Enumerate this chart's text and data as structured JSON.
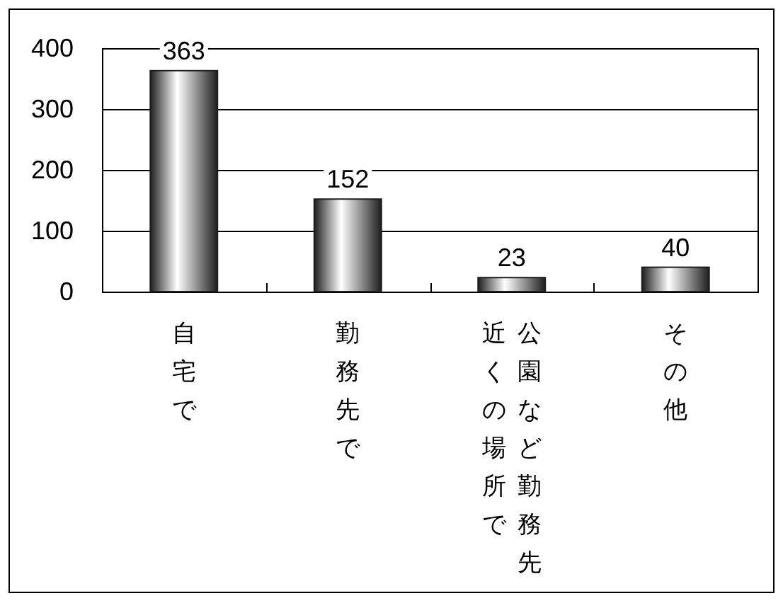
{
  "chart_data": {
    "type": "bar",
    "categories": [
      "自宅で",
      "勤務先で",
      "公園など勤務先近くの場所で",
      "その他"
    ],
    "values": [
      363,
      152,
      23,
      40
    ],
    "color": "#1e1e1e",
    "ylim": [
      0,
      400
    ],
    "yticks": [
      0,
      100,
      200,
      300,
      400
    ],
    "grid": "y",
    "data_labels": true
  }
}
